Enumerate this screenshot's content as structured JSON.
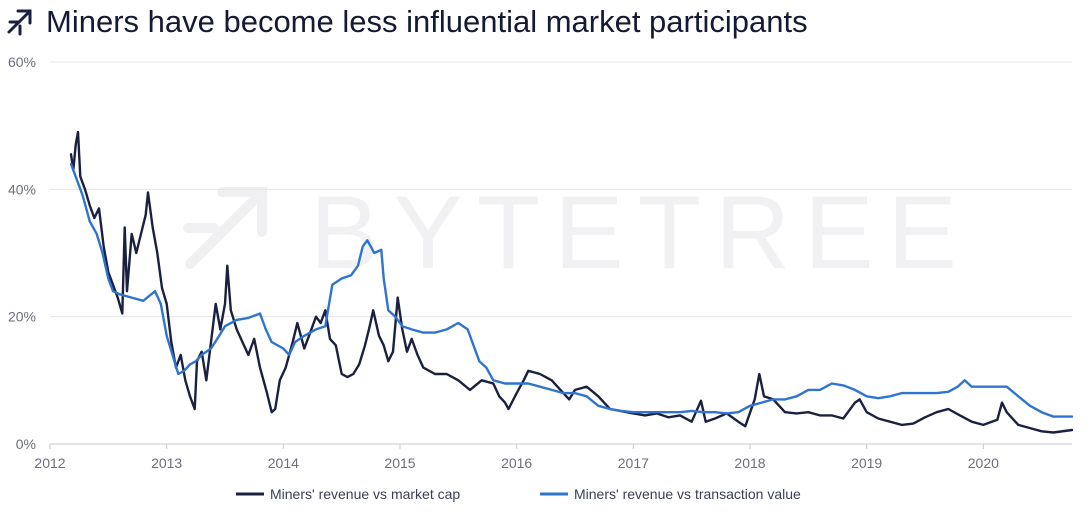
{
  "header": {
    "logo_icon": "bytetree-arrows-icon",
    "title": "Miners have become less influential market participants"
  },
  "watermark": {
    "text": "BYTETREE",
    "icon": "bytetree-arrows-icon"
  },
  "chart_data": {
    "type": "line",
    "title": "Miners have become less influential market participants",
    "x_unit": "year",
    "xlim": [
      2012.0,
      2020.76
    ],
    "ylim": [
      0,
      60
    ],
    "x_ticks": [
      "2012",
      "2013",
      "2014",
      "2015",
      "2016",
      "2017",
      "2018",
      "2019",
      "2020"
    ],
    "y_ticks": [
      "0%",
      "20%",
      "40%",
      "60%"
    ],
    "y_tick_values": [
      0,
      20,
      40,
      60
    ],
    "grid": "horizontal",
    "legend_position": "bottom",
    "series": [
      {
        "name": "Miners' revenue vs market cap",
        "color": "#1b2040",
        "points": [
          [
            2012.18,
            45.5
          ],
          [
            2012.2,
            43
          ],
          [
            2012.22,
            47
          ],
          [
            2012.24,
            49
          ],
          [
            2012.26,
            42
          ],
          [
            2012.3,
            40
          ],
          [
            2012.34,
            37.5
          ],
          [
            2012.38,
            35.5
          ],
          [
            2012.42,
            37
          ],
          [
            2012.46,
            31
          ],
          [
            2012.5,
            27
          ],
          [
            2012.54,
            25
          ],
          [
            2012.58,
            23
          ],
          [
            2012.62,
            20.5
          ],
          [
            2012.64,
            34
          ],
          [
            2012.66,
            24
          ],
          [
            2012.7,
            33
          ],
          [
            2012.74,
            30
          ],
          [
            2012.78,
            33
          ],
          [
            2012.82,
            36
          ],
          [
            2012.84,
            39.5
          ],
          [
            2012.88,
            34
          ],
          [
            2012.92,
            30
          ],
          [
            2012.96,
            24.5
          ],
          [
            2013.0,
            22
          ],
          [
            2013.04,
            16
          ],
          [
            2013.08,
            12
          ],
          [
            2013.12,
            14
          ],
          [
            2013.16,
            10
          ],
          [
            2013.2,
            7.5
          ],
          [
            2013.24,
            5.5
          ],
          [
            2013.26,
            13
          ],
          [
            2013.3,
            14.5
          ],
          [
            2013.34,
            10
          ],
          [
            2013.38,
            16
          ],
          [
            2013.42,
            22
          ],
          [
            2013.46,
            18
          ],
          [
            2013.5,
            22
          ],
          [
            2013.52,
            28
          ],
          [
            2013.55,
            21
          ],
          [
            2013.6,
            18
          ],
          [
            2013.65,
            16
          ],
          [
            2013.7,
            14
          ],
          [
            2013.75,
            16.5
          ],
          [
            2013.8,
            12
          ],
          [
            2013.86,
            8
          ],
          [
            2013.9,
            5
          ],
          [
            2013.93,
            5.5
          ],
          [
            2013.97,
            10
          ],
          [
            2014.02,
            12
          ],
          [
            2014.08,
            16
          ],
          [
            2014.12,
            19
          ],
          [
            2014.18,
            15
          ],
          [
            2014.22,
            17
          ],
          [
            2014.28,
            20
          ],
          [
            2014.32,
            19
          ],
          [
            2014.36,
            21
          ],
          [
            2014.4,
            16.5
          ],
          [
            2014.45,
            15.5
          ],
          [
            2014.5,
            11
          ],
          [
            2014.55,
            10.5
          ],
          [
            2014.6,
            11
          ],
          [
            2014.65,
            12.5
          ],
          [
            2014.7,
            15.5
          ],
          [
            2014.74,
            18.5
          ],
          [
            2014.77,
            21
          ],
          [
            2014.82,
            17
          ],
          [
            2014.86,
            15.5
          ],
          [
            2014.9,
            13
          ],
          [
            2014.94,
            14.5
          ],
          [
            2014.98,
            23
          ],
          [
            2015.02,
            18
          ],
          [
            2015.06,
            14.5
          ],
          [
            2015.1,
            16.5
          ],
          [
            2015.15,
            14
          ],
          [
            2015.2,
            12
          ],
          [
            2015.3,
            11
          ],
          [
            2015.4,
            11
          ],
          [
            2015.5,
            10
          ],
          [
            2015.6,
            8.5
          ],
          [
            2015.7,
            10
          ],
          [
            2015.8,
            9.5
          ],
          [
            2015.85,
            7.5
          ],
          [
            2015.9,
            6.5
          ],
          [
            2015.93,
            5.5
          ],
          [
            2016.0,
            8
          ],
          [
            2016.06,
            10
          ],
          [
            2016.1,
            11.5
          ],
          [
            2016.2,
            11
          ],
          [
            2016.3,
            10
          ],
          [
            2016.4,
            8
          ],
          [
            2016.45,
            7
          ],
          [
            2016.5,
            8.5
          ],
          [
            2016.6,
            9
          ],
          [
            2016.7,
            7.5
          ],
          [
            2016.8,
            5.5
          ],
          [
            2017.0,
            4.8
          ],
          [
            2017.1,
            4.5
          ],
          [
            2017.2,
            4.8
          ],
          [
            2017.3,
            4.2
          ],
          [
            2017.4,
            4.5
          ],
          [
            2017.5,
            3.5
          ],
          [
            2017.58,
            6.8
          ],
          [
            2017.62,
            3.5
          ],
          [
            2017.7,
            4
          ],
          [
            2017.8,
            4.8
          ],
          [
            2017.9,
            3.5
          ],
          [
            2017.96,
            2.8
          ],
          [
            2018.04,
            7
          ],
          [
            2018.08,
            11
          ],
          [
            2018.12,
            7.5
          ],
          [
            2018.2,
            7
          ],
          [
            2018.3,
            5
          ],
          [
            2018.4,
            4.8
          ],
          [
            2018.5,
            5
          ],
          [
            2018.6,
            4.5
          ],
          [
            2018.7,
            4.5
          ],
          [
            2018.8,
            4
          ],
          [
            2018.9,
            6.5
          ],
          [
            2018.94,
            7
          ],
          [
            2019.0,
            5
          ],
          [
            2019.1,
            4
          ],
          [
            2019.2,
            3.5
          ],
          [
            2019.3,
            3
          ],
          [
            2019.4,
            3.2
          ],
          [
            2019.5,
            4.2
          ],
          [
            2019.6,
            5
          ],
          [
            2019.7,
            5.5
          ],
          [
            2019.8,
            4.5
          ],
          [
            2019.9,
            3.5
          ],
          [
            2020.0,
            3
          ],
          [
            2020.12,
            3.8
          ],
          [
            2020.16,
            6.5
          ],
          [
            2020.2,
            5
          ],
          [
            2020.3,
            3
          ],
          [
            2020.4,
            2.5
          ],
          [
            2020.5,
            2
          ],
          [
            2020.6,
            1.8
          ],
          [
            2020.76,
            2.2
          ]
        ]
      },
      {
        "name": "Miners' revenue vs transaction value",
        "color": "#2f74d0",
        "points": [
          [
            2012.18,
            44
          ],
          [
            2012.22,
            42
          ],
          [
            2012.28,
            39
          ],
          [
            2012.34,
            35
          ],
          [
            2012.4,
            33
          ],
          [
            2012.45,
            30
          ],
          [
            2012.5,
            26
          ],
          [
            2012.54,
            24
          ],
          [
            2012.6,
            23.5
          ],
          [
            2012.7,
            23
          ],
          [
            2012.8,
            22.5
          ],
          [
            2012.9,
            24
          ],
          [
            2012.95,
            22
          ],
          [
            2013.0,
            17
          ],
          [
            2013.05,
            14
          ],
          [
            2013.1,
            11
          ],
          [
            2013.15,
            11.5
          ],
          [
            2013.2,
            12.5
          ],
          [
            2013.25,
            13
          ],
          [
            2013.3,
            14
          ],
          [
            2013.38,
            15
          ],
          [
            2013.45,
            17
          ],
          [
            2013.5,
            18.5
          ],
          [
            2013.6,
            19.5
          ],
          [
            2013.7,
            19.8
          ],
          [
            2013.8,
            20.5
          ],
          [
            2013.85,
            18
          ],
          [
            2013.9,
            16
          ],
          [
            2014.0,
            15
          ],
          [
            2014.05,
            14
          ],
          [
            2014.1,
            16
          ],
          [
            2014.18,
            17
          ],
          [
            2014.28,
            18
          ],
          [
            2014.36,
            18.5
          ],
          [
            2014.42,
            25
          ],
          [
            2014.5,
            26
          ],
          [
            2014.58,
            26.5
          ],
          [
            2014.64,
            28
          ],
          [
            2014.68,
            31
          ],
          [
            2014.72,
            32
          ],
          [
            2014.78,
            30
          ],
          [
            2014.84,
            30.5
          ],
          [
            2014.86,
            26
          ],
          [
            2014.9,
            21
          ],
          [
            2014.96,
            20
          ],
          [
            2015.02,
            18.5
          ],
          [
            2015.1,
            18
          ],
          [
            2015.2,
            17.5
          ],
          [
            2015.3,
            17.5
          ],
          [
            2015.4,
            18
          ],
          [
            2015.5,
            19
          ],
          [
            2015.58,
            18
          ],
          [
            2015.62,
            16
          ],
          [
            2015.68,
            13
          ],
          [
            2015.74,
            12
          ],
          [
            2015.8,
            10
          ],
          [
            2015.9,
            9.5
          ],
          [
            2016.0,
            9.5
          ],
          [
            2016.1,
            9.5
          ],
          [
            2016.2,
            9
          ],
          [
            2016.3,
            8.5
          ],
          [
            2016.4,
            8
          ],
          [
            2016.5,
            8
          ],
          [
            2016.6,
            7.5
          ],
          [
            2016.7,
            6
          ],
          [
            2016.8,
            5.5
          ],
          [
            2016.9,
            5.2
          ],
          [
            2017.0,
            5
          ],
          [
            2017.2,
            5
          ],
          [
            2017.4,
            5
          ],
          [
            2017.5,
            5.2
          ],
          [
            2017.6,
            5
          ],
          [
            2017.7,
            5
          ],
          [
            2017.8,
            4.8
          ],
          [
            2017.9,
            5
          ],
          [
            2018.0,
            6
          ],
          [
            2018.1,
            6.5
          ],
          [
            2018.2,
            7
          ],
          [
            2018.3,
            7
          ],
          [
            2018.4,
            7.5
          ],
          [
            2018.5,
            8.5
          ],
          [
            2018.6,
            8.5
          ],
          [
            2018.7,
            9.5
          ],
          [
            2018.8,
            9.2
          ],
          [
            2018.9,
            8.5
          ],
          [
            2019.0,
            7.5
          ],
          [
            2019.1,
            7.2
          ],
          [
            2019.2,
            7.5
          ],
          [
            2019.3,
            8
          ],
          [
            2019.4,
            8
          ],
          [
            2019.5,
            8
          ],
          [
            2019.6,
            8
          ],
          [
            2019.7,
            8.2
          ],
          [
            2019.78,
            9
          ],
          [
            2019.84,
            10
          ],
          [
            2019.9,
            9
          ],
          [
            2020.0,
            9
          ],
          [
            2020.1,
            9
          ],
          [
            2020.2,
            9
          ],
          [
            2020.3,
            7.5
          ],
          [
            2020.4,
            6
          ],
          [
            2020.5,
            5
          ],
          [
            2020.6,
            4.3
          ],
          [
            2020.76,
            4.3
          ]
        ]
      }
    ]
  }
}
